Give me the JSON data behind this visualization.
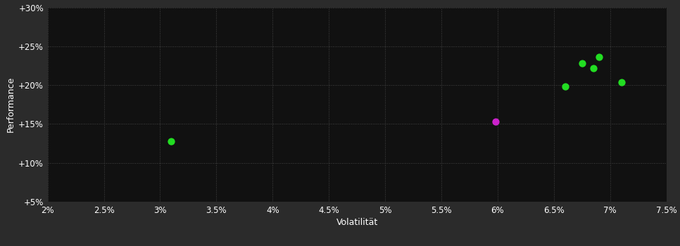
{
  "background_color": "#2b2b2b",
  "plot_bg_color": "#111111",
  "grid_color": "#444444",
  "text_color": "#ffffff",
  "xlabel": "Volatilität",
  "ylabel": "Performance",
  "xlim": [
    0.02,
    0.075
  ],
  "ylim": [
    0.05,
    0.3
  ],
  "xticks": [
    0.02,
    0.025,
    0.03,
    0.035,
    0.04,
    0.045,
    0.05,
    0.055,
    0.06,
    0.065,
    0.07,
    0.075
  ],
  "yticks": [
    0.05,
    0.1,
    0.15,
    0.2,
    0.25,
    0.3
  ],
  "xtick_labels": [
    "2%",
    "2.5%",
    "3%",
    "3.5%",
    "4%",
    "4.5%",
    "5%",
    "5.5%",
    "6%",
    "6.5%",
    "7%",
    "7.5%"
  ],
  "ytick_labels": [
    "+5%",
    "+10%",
    "+15%",
    "+20%",
    "+25%",
    "+30%"
  ],
  "green_points": [
    [
      0.031,
      0.128
    ],
    [
      0.066,
      0.198
    ],
    [
      0.0675,
      0.228
    ],
    [
      0.069,
      0.236
    ],
    [
      0.0685,
      0.222
    ],
    [
      0.071,
      0.204
    ]
  ],
  "magenta_points": [
    [
      0.0598,
      0.153
    ]
  ],
  "green_color": "#22dd22",
  "magenta_color": "#cc22cc",
  "marker_size": 55,
  "axis_fontsize": 9,
  "tick_fontsize": 8.5
}
